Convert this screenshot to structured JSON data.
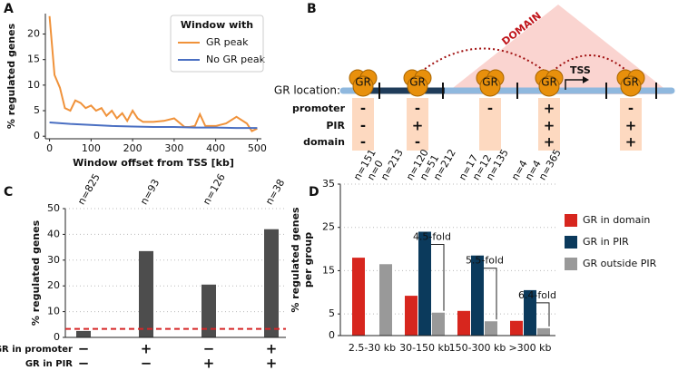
{
  "panel_labels": [
    "A",
    "B",
    "C",
    "D"
  ],
  "chart_data": [
    {
      "type": "line",
      "xlabel": "Window offset from TSS [kb]",
      "ylabel": "% regulated genes",
      "legend_title": "Window with",
      "xlim": [
        -10,
        510
      ],
      "ylim": [
        -0.5,
        24
      ],
      "xticks": [
        0,
        100,
        200,
        300,
        400,
        500
      ],
      "yticks": [
        0,
        5,
        10,
        15,
        20
      ],
      "series": [
        {
          "name": "GR peak",
          "color": "#f0923a",
          "x": [
            0,
            12,
            25,
            37,
            50,
            62,
            75,
            87,
            100,
            112,
            125,
            137,
            150,
            162,
            175,
            187,
            200,
            212,
            225,
            250,
            275,
            300,
            325,
            337,
            350,
            362,
            375,
            400,
            425,
            450,
            475,
            487,
            500
          ],
          "values": [
            23.5,
            12,
            9.5,
            5.5,
            5,
            7,
            6.5,
            5.5,
            6,
            5,
            5.5,
            4,
            5,
            3.5,
            4.5,
            3,
            5,
            3.5,
            2.8,
            2.8,
            3,
            3.5,
            1.8,
            1.8,
            2,
            4.3,
            2,
            2,
            2.5,
            3.8,
            2.5,
            1,
            1.5
          ]
        },
        {
          "name": "No GR peak",
          "color": "#4a6fc2",
          "x": [
            0,
            50,
            100,
            150,
            200,
            250,
            300,
            350,
            400,
            450,
            500
          ],
          "values": [
            2.7,
            2.4,
            2.2,
            2.0,
            1.9,
            1.8,
            1.8,
            1.7,
            1.7,
            1.6,
            1.6
          ]
        }
      ]
    },
    {
      "type": "bar",
      "ylabel": "% regulated genes",
      "values": [
        2.5,
        33.5,
        20.5,
        42
      ],
      "color": "#4d4d4d",
      "n_labels": [
        "n=825",
        "n=93",
        "n=126",
        "n=38"
      ],
      "ylim": [
        0,
        50
      ],
      "yticks": [
        0,
        10,
        20,
        30,
        40,
        50
      ],
      "grid": true,
      "reference_line": {
        "value": 3.3,
        "color": "#d62728"
      },
      "rows": [
        {
          "name": "GR in promoter",
          "signs": [
            "−",
            "+",
            "−",
            "+"
          ]
        },
        {
          "name": "GR in PIR",
          "signs": [
            "−",
            "−",
            "+",
            "+"
          ]
        }
      ]
    },
    {
      "type": "grouped_bar",
      "ylabel": [
        "% regulated genes",
        "per group"
      ],
      "categories": [
        "2.5-30 kb",
        "30-150 kb",
        "150-300 kb",
        ">300 kb"
      ],
      "ylim": [
        0,
        35
      ],
      "yticks": [
        0,
        5,
        15,
        25,
        35
      ],
      "grid": true,
      "fold_labels": [
        null,
        "4.5-fold",
        "5.5-fold",
        "6.4-fold"
      ],
      "series": [
        {
          "name": "GR in domain",
          "color": "#d7261e",
          "values": [
            18,
            9.2,
            5.7,
            3.4
          ],
          "n_labels": [
            "n=151",
            "n=120",
            "n=17",
            "n=4"
          ]
        },
        {
          "name": "GR in PIR",
          "color": "#0b3a5c",
          "values": [
            null,
            24,
            18.5,
            10.5
          ],
          "n_labels": [
            "n=0",
            "n=51",
            "n=12",
            "n=4"
          ]
        },
        {
          "name": "GR outside PIR",
          "color": "#999999",
          "values": [
            16.5,
            5.3,
            3.3,
            1.7
          ],
          "n_labels": [
            "n=213",
            "n=212",
            "n=135",
            "n=365"
          ]
        }
      ]
    }
  ],
  "diagram": {
    "label": "GR location:",
    "domain_label": "DOMAIN",
    "tss_label": "TSS",
    "blob_label": "GR",
    "rows": [
      "promoter",
      "PIR",
      "domain"
    ],
    "columns": [
      [
        "-",
        "-",
        "-"
      ],
      [
        "-",
        "+",
        "-"
      ],
      [
        "-"
      ],
      [
        "+",
        "+",
        "+"
      ],
      [
        "-",
        "+",
        "+"
      ]
    ]
  }
}
